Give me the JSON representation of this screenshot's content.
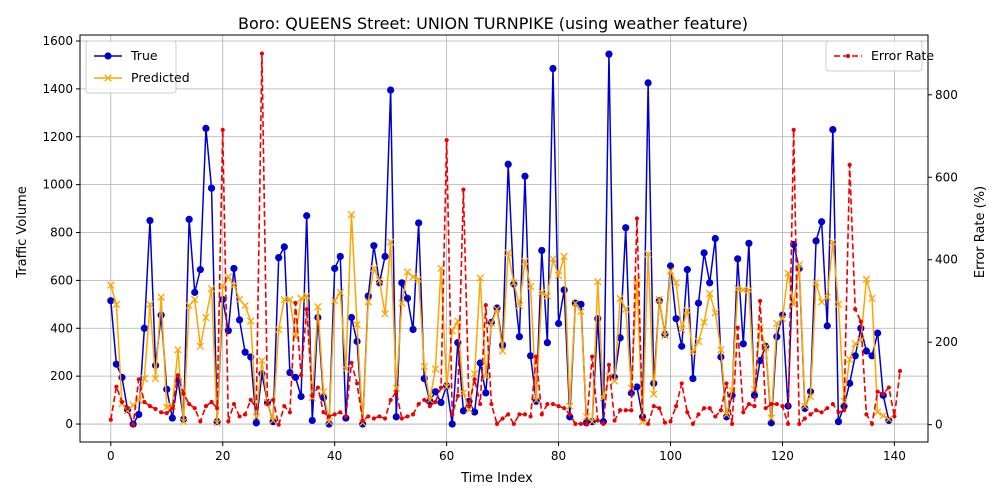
{
  "chart_data": {
    "type": "line",
    "title": "Boro: QUEENS Street: UNION TURNPIKE (using weather feature)",
    "xlabel": "Time Index",
    "ylabel": "Traffic Volume",
    "ylabel_right": "Error Rate (%)",
    "xlim": [
      -5.5,
      146
    ],
    "ylim": [
      -75,
      1625
    ],
    "ylim_right": [
      -42,
      945
    ],
    "xticks": [
      0,
      20,
      40,
      60,
      80,
      100,
      120,
      140
    ],
    "yticks": [
      0,
      200,
      400,
      600,
      800,
      1000,
      1200,
      1400,
      1600
    ],
    "yticks_right": [
      0,
      200,
      400,
      600,
      800
    ],
    "grid": true,
    "legend_left": "top-left",
    "legend_right": "top-right",
    "colors": {
      "true": "#0000cc",
      "predicted": "#ffa500",
      "error": "#ee0000",
      "grid": "#b0b0b0"
    },
    "series": [
      {
        "name": "True",
        "axis": "left",
        "values": [
          515,
          250,
          195,
          60,
          0,
          40,
          400,
          850,
          245,
          455,
          145,
          25,
          185,
          20,
          855,
          550,
          645,
          1235,
          985,
          10,
          520,
          390,
          650,
          435,
          300,
          280,
          5,
          210,
          90,
          10,
          695,
          740,
          215,
          195,
          115,
          870,
          15,
          445,
          110,
          0,
          650,
          700,
          25,
          445,
          345,
          0,
          535,
          745,
          590,
          700,
          1395,
          30,
          590,
          525,
          395,
          840,
          190,
          95,
          135,
          90,
          160,
          0,
          340,
          55,
          95,
          50,
          255,
          130,
          425,
          485,
          330,
          1085,
          585,
          365,
          1035,
          285,
          95,
          725,
          340,
          1485,
          420,
          560,
          30,
          505,
          500,
          5,
          10,
          440,
          10,
          1545,
          195,
          360,
          820,
          130,
          155,
          30,
          1425,
          170,
          515,
          375,
          660,
          440,
          325,
          645,
          190,
          505,
          715,
          590,
          775,
          280,
          30,
          120,
          690,
          335,
          755,
          120,
          265,
          325,
          5,
          365,
          455,
          75,
          750,
          650,
          65,
          135,
          765,
          845,
          410,
          1230,
          10,
          75,
          170,
          285,
          400,
          305,
          285,
          380,
          120,
          15
        ]
      },
      {
        "name": "Predicted",
        "axis": "left",
        "values": [
          580,
          500,
          85,
          55,
          80,
          100,
          190,
          500,
          190,
          530,
          70,
          75,
          310,
          10,
          495,
          520,
          325,
          445,
          565,
          5,
          575,
          615,
          580,
          520,
          495,
          430,
          30,
          265,
          90,
          15,
          395,
          520,
          520,
          365,
          525,
          535,
          110,
          490,
          135,
          10,
          515,
          550,
          230,
          875,
          415,
          5,
          510,
          650,
          600,
          460,
          760,
          150,
          505,
          635,
          615,
          605,
          240,
          100,
          230,
          650,
          155,
          390,
          430,
          130,
          60,
          210,
          610,
          200,
          420,
          480,
          305,
          715,
          590,
          495,
          680,
          575,
          100,
          550,
          535,
          690,
          620,
          700,
          75,
          505,
          470,
          30,
          10,
          595,
          110,
          200,
          180,
          525,
          480,
          150,
          600,
          10,
          710,
          125,
          520,
          370,
          640,
          590,
          395,
          475,
          300,
          345,
          425,
          545,
          465,
          310,
          40,
          140,
          565,
          560,
          560,
          145,
          405,
          320,
          25,
          420,
          440,
          630,
          500,
          665,
          75,
          115,
          590,
          510,
          530,
          760,
          500,
          95,
          270,
          335,
          350,
          605,
          525,
          50,
          35,
          20
        ]
      },
      {
        "name": "Error Rate",
        "axis": "right",
        "values": [
          12,
          92,
          55,
          40,
          0,
          110,
          55,
          45,
          38,
          30,
          28,
          40,
          120,
          75,
          50,
          40,
          8,
          45,
          55,
          40,
          715,
          8,
          50,
          20,
          25,
          60,
          40,
          900,
          50,
          60,
          0,
          45,
          30,
          295,
          120,
          280,
          70,
          90,
          30,
          20,
          25,
          30,
          20,
          150,
          100,
          10,
          20,
          15,
          20,
          15,
          60,
          80,
          15,
          20,
          25,
          50,
          60,
          45,
          55,
          90,
          690,
          25,
          70,
          570,
          45,
          110,
          50,
          290,
          50,
          2,
          15,
          25,
          2,
          25,
          25,
          20,
          165,
          25,
          50,
          50,
          45,
          40,
          25,
          2,
          2,
          2,
          165,
          10,
          2,
          145,
          10,
          35,
          35,
          35,
          500,
          15,
          2,
          45,
          40,
          5,
          8,
          45,
          100,
          30,
          2,
          25,
          40,
          40,
          20,
          35,
          100,
          2,
          235,
          30,
          50,
          45,
          300,
          40,
          50,
          50,
          45,
          2,
          715,
          2,
          15,
          25,
          35,
          30,
          40,
          50,
          30,
          35,
          630,
          280,
          250,
          25,
          2,
          80,
          75,
          90,
          20,
          130
        ]
      }
    ]
  }
}
